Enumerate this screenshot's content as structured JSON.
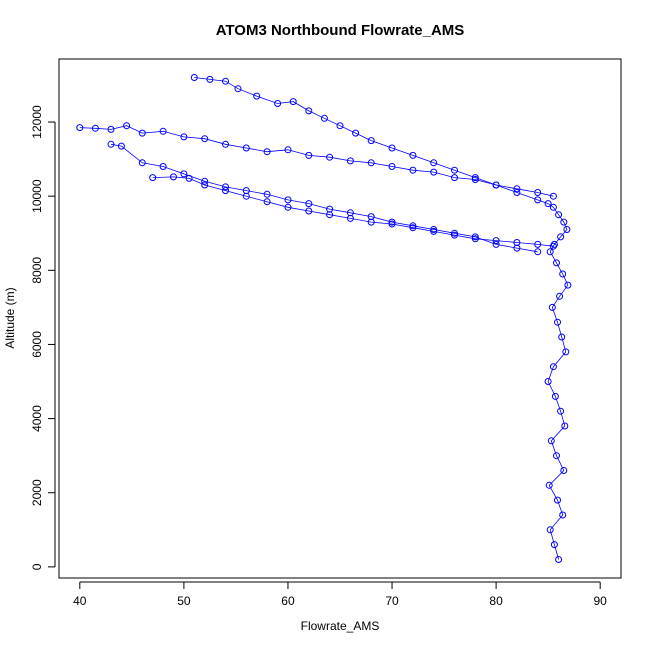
{
  "chart_data": {
    "type": "scatter",
    "title": "ATOM3 Northbound Flowrate_AMS",
    "xlabel": "Flowrate_AMS",
    "ylabel": "Altitude (m)",
    "xlim": [
      38.0,
      92.0
    ],
    "ylim": [
      -300,
      13700
    ],
    "x_ticks": [
      40,
      50,
      60,
      70,
      80,
      90
    ],
    "y_ticks": [
      0,
      2000,
      4000,
      6000,
      8000,
      10000,
      12000
    ],
    "grid": false,
    "legend": "none",
    "marker": "open-circle",
    "connected": true,
    "color": "#0000ff",
    "series": [
      {
        "x": [
          51.0,
          52.5,
          54.0,
          55.2,
          57.0,
          59.0,
          60.5,
          62.0,
          63.5,
          65.0,
          66.5,
          68.0,
          70.0,
          72.0,
          74.0,
          76.0,
          78.0,
          80.0,
          82.0,
          84.0,
          85.0,
          85.5,
          86.0,
          86.5,
          86.8,
          86.2,
          85.6,
          85.2,
          85.8,
          86.4,
          86.9,
          86.1,
          85.4,
          85.9,
          86.3,
          86.7,
          85.5,
          85.0,
          85.7,
          86.2,
          86.6,
          85.3,
          85.8,
          86.5,
          85.1,
          85.9,
          86.4,
          85.2,
          85.6,
          86.0
        ],
        "y": [
          13200,
          13150,
          13100,
          12900,
          12700,
          12500,
          12550,
          12300,
          12100,
          11900,
          11700,
          11500,
          11300,
          11100,
          10900,
          10700,
          10500,
          10300,
          10100,
          9900,
          9800,
          9700,
          9500,
          9300,
          9100,
          8900,
          8700,
          8500,
          8200,
          7900,
          7600,
          7300,
          7000,
          6600,
          6200,
          5800,
          5400,
          5000,
          4600,
          4200,
          3800,
          3400,
          3000,
          2600,
          2200,
          1800,
          1400,
          1000,
          600,
          200
        ]
      },
      {
        "x": [
          40.0,
          41.5,
          43.0,
          44.5,
          46.0,
          48.0,
          50.0,
          52.0,
          54.0,
          56.0,
          58.0,
          60.0,
          62.0,
          64.0,
          66.0,
          68.0,
          70.0,
          72.0,
          74.0,
          76.0,
          78.0,
          80.0,
          82.0,
          84.0,
          85.5
        ],
        "y": [
          11850,
          11830,
          11800,
          11900,
          11700,
          11750,
          11600,
          11550,
          11400,
          11300,
          11200,
          11250,
          11100,
          11050,
          10950,
          10900,
          10800,
          10700,
          10650,
          10500,
          10450,
          10300,
          10200,
          10100,
          10000
        ]
      },
      {
        "x": [
          47.0,
          49.0,
          50.5,
          52.0,
          54.0,
          56.0,
          58.0,
          60.0,
          62.0,
          64.0,
          66.0,
          68.0,
          70.0,
          72.0,
          74.0,
          76.0,
          78.0,
          80.0,
          82.0,
          84.0,
          85.5
        ],
        "y": [
          10500,
          10520,
          10480,
          10300,
          10150,
          10000,
          9850,
          9700,
          9600,
          9500,
          9400,
          9300,
          9250,
          9150,
          9050,
          8950,
          8850,
          8800,
          8750,
          8700,
          8650
        ]
      },
      {
        "x": [
          43.0,
          44.0,
          46.0,
          48.0,
          50.0,
          52.0,
          54.0,
          56.0,
          58.0,
          60.0,
          62.0,
          64.0,
          66.0,
          68.0,
          70.0,
          72.0,
          74.0,
          76.0,
          78.0,
          80.0,
          82.0,
          84.0
        ],
        "y": [
          11400,
          11350,
          10900,
          10800,
          10600,
          10400,
          10250,
          10150,
          10050,
          9900,
          9800,
          9650,
          9550,
          9450,
          9300,
          9200,
          9100,
          9000,
          8900,
          8700,
          8600,
          8500
        ]
      }
    ]
  }
}
